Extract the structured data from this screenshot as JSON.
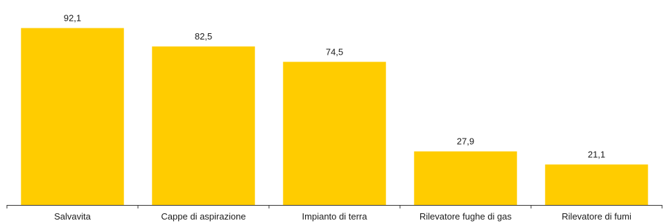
{
  "chart_data": {
    "type": "bar",
    "categories": [
      "Salvavita",
      "Cappe di aspirazione",
      "Impianto di terra",
      "Rilevatore fughe di gas",
      "Rilevatore di fumi"
    ],
    "values": [
      92.1,
      82.5,
      74.5,
      27.9,
      21.1
    ],
    "value_labels": [
      "92,1",
      "82,5",
      "74,5",
      "27,9",
      "21,1"
    ],
    "title": "",
    "xlabel": "",
    "ylabel": "",
    "ylim": [
      0,
      100
    ],
    "grid": false,
    "legend": "none",
    "bar_color": "#FFCC00",
    "axis_color": "#333333"
  }
}
